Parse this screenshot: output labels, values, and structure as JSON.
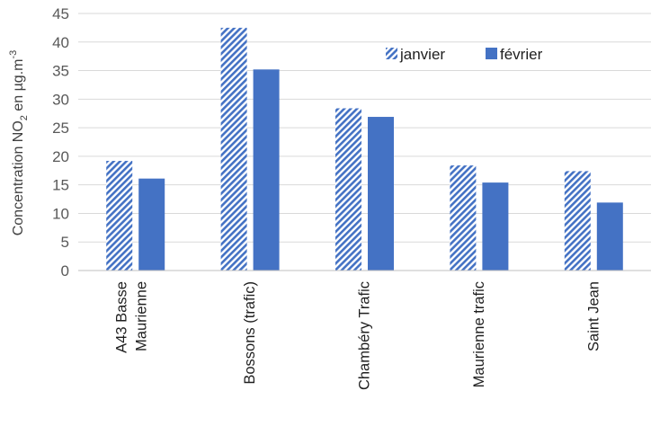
{
  "chart_data": {
    "type": "bar",
    "categories": [
      [
        "A43 Basse",
        "Maurienne"
      ],
      [
        "Bossons (trafic)"
      ],
      [
        "Chambéry Trafic"
      ],
      [
        "Maurienne trafic"
      ],
      [
        "Saint Jean"
      ]
    ],
    "series": [
      {
        "name": "janvier",
        "values": [
          19.2,
          42.5,
          28.4,
          18.4,
          17.4
        ],
        "color": "#4472c4",
        "pattern": "diagonal-stripes"
      },
      {
        "name": "février",
        "values": [
          16.1,
          35.2,
          26.9,
          15.4,
          11.9
        ],
        "color": "#4472c4",
        "pattern": "solid"
      }
    ],
    "ylabel": {
      "main": "Concentration NO",
      "sub": "2",
      "mid": " en µg.m",
      "sup": "-3"
    },
    "ylim": [
      0,
      45
    ],
    "yticks": [
      0,
      5,
      10,
      15,
      20,
      25,
      30,
      35,
      40,
      45
    ],
    "grid": true,
    "legend_position": "top-right"
  }
}
